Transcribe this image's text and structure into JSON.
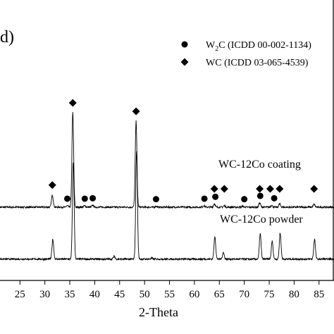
{
  "chart_data": {
    "type": "line",
    "panel_label": "d)",
    "xlabel": "2-Theta",
    "ylabel": "",
    "xlim": [
      21,
      88
    ],
    "x_ticks": [
      25,
      30,
      35,
      40,
      45,
      50,
      55,
      60,
      65,
      70,
      75,
      80,
      85
    ],
    "grid": false,
    "legend_position": "top-right",
    "legend": [
      {
        "marker": "circle",
        "label_parts": [
          "W",
          "2",
          "C (ICDD 00-002-1134)"
        ]
      },
      {
        "marker": "diamond",
        "label_parts": [
          "WC",
          "",
          "  (ICDD 03-065-4539)"
        ]
      }
    ],
    "series": [
      {
        "name": "WC-12Co coating",
        "baseline": 0,
        "peaks": [
          {
            "x": 31.5,
            "h": 0.13
          },
          {
            "x": 34.5,
            "h": 0.015
          },
          {
            "x": 35.6,
            "h": 1.0
          },
          {
            "x": 38.0,
            "h": 0.015
          },
          {
            "x": 39.6,
            "h": 0.02
          },
          {
            "x": 48.3,
            "h": 0.91
          },
          {
            "x": 52.3,
            "h": 0.01
          },
          {
            "x": 61.9,
            "h": 0.015
          },
          {
            "x": 64.0,
            "h": 0.035
          },
          {
            "x": 66.0,
            "h": 0.015
          },
          {
            "x": 69.7,
            "h": 0.01
          },
          {
            "x": 73.1,
            "h": 0.045
          },
          {
            "x": 75.5,
            "h": 0.02
          },
          {
            "x": 77.1,
            "h": 0.035
          },
          {
            "x": 84.0,
            "h": 0.03
          }
        ],
        "circle_markers": [
          34.5,
          38.0,
          39.6,
          52.3,
          62.0,
          64.2,
          70.0,
          73.2,
          76.0
        ],
        "diamond_markers": [
          31.5,
          35.6,
          48.3,
          64.0,
          66.0,
          73.1,
          75.2,
          77.1,
          84.0
        ]
      },
      {
        "name": "WC-12Co powder",
        "baseline": -0.55,
        "peaks": [
          {
            "x": 31.6,
            "h": 0.21
          },
          {
            "x": 35.7,
            "h": 1.03
          },
          {
            "x": 43.9,
            "h": 0.03
          },
          {
            "x": 48.4,
            "h": 1.15
          },
          {
            "x": 51.5,
            "h": 0.01
          },
          {
            "x": 64.1,
            "h": 0.24
          },
          {
            "x": 65.8,
            "h": 0.07
          },
          {
            "x": 73.2,
            "h": 0.27
          },
          {
            "x": 75.6,
            "h": 0.19
          },
          {
            "x": 77.2,
            "h": 0.28
          },
          {
            "x": 84.1,
            "h": 0.21
          }
        ]
      }
    ]
  }
}
